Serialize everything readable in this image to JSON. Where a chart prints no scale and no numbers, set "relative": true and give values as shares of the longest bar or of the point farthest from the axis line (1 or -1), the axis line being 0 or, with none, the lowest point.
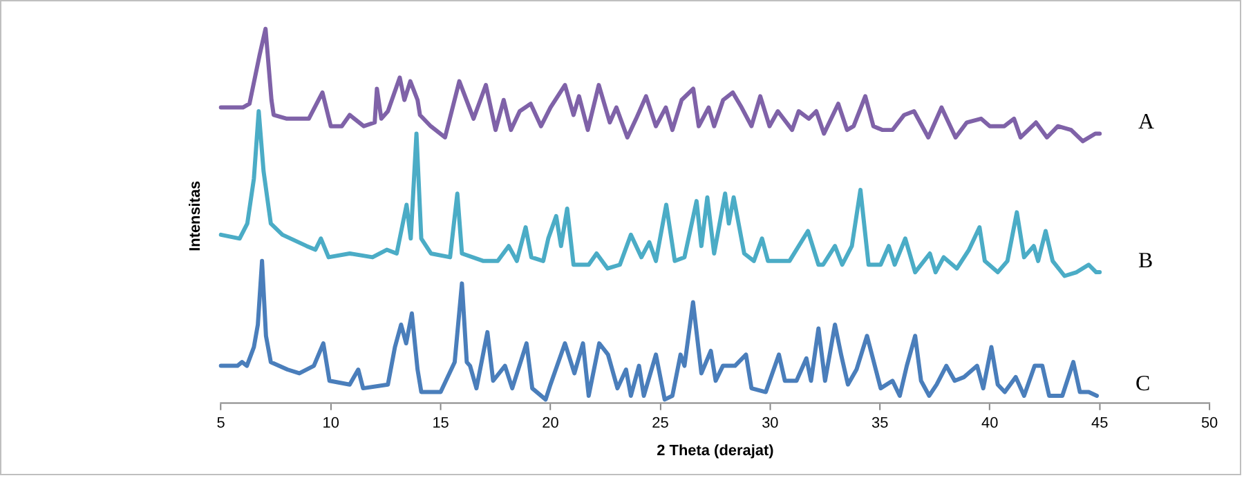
{
  "chart_data": {
    "type": "line",
    "relative": true,
    "xlabel": "2 Theta (derajat)",
    "ylabel": "Intensitas",
    "xlim": [
      5,
      50
    ],
    "xticks": [
      5,
      10,
      15,
      20,
      25,
      30,
      35,
      40,
      45,
      50
    ],
    "grid": false,
    "legend": false,
    "marker": "none",
    "line_style": "solid",
    "series": [
      {
        "name": "A",
        "color": "#7f62a8",
        "x": [
          5,
          6,
          6.3,
          6.76,
          7.03,
          7.3,
          7.4,
          8,
          9,
          9.62,
          10,
          10.5,
          10.86,
          11.5,
          12,
          12.1,
          12.3,
          12.6,
          13.14,
          13.35,
          13.62,
          13.95,
          14.06,
          14.55,
          15.2,
          15.85,
          16.5,
          17.06,
          17.5,
          17.87,
          18.2,
          18.6,
          19.1,
          19.57,
          20,
          20.66,
          21.05,
          21.3,
          21.7,
          22.2,
          22.7,
          23,
          23.5,
          23.9,
          24.35,
          24.8,
          25.25,
          25.55,
          25.97,
          26.5,
          26.75,
          27.2,
          27.45,
          27.86,
          28.3,
          28.7,
          29.15,
          29.55,
          29.97,
          30.35,
          31,
          31.3,
          31.76,
          32.1,
          32.45,
          33.1,
          33.5,
          33.8,
          34.33,
          34.7,
          35.1,
          35.57,
          36.1,
          36.55,
          37.2,
          37.8,
          38.44,
          38.95,
          39.6,
          40,
          40.66,
          41.1,
          41.4,
          42.1,
          42.6,
          43.1,
          43.7,
          44.23,
          44.8,
          45
        ],
        "values": [
          0.79,
          0.79,
          0.8,
          0.93,
          1,
          0.81,
          0.77,
          0.76,
          0.76,
          0.83,
          0.74,
          0.74,
          0.77,
          0.74,
          0.75,
          0.84,
          0.76,
          0.78,
          0.87,
          0.81,
          0.86,
          0.81,
          0.77,
          0.74,
          0.71,
          0.86,
          0.76,
          0.85,
          0.73,
          0.81,
          0.73,
          0.78,
          0.8,
          0.74,
          0.79,
          0.85,
          0.77,
          0.82,
          0.73,
          0.85,
          0.75,
          0.79,
          0.71,
          0.76,
          0.82,
          0.74,
          0.79,
          0.73,
          0.81,
          0.84,
          0.74,
          0.79,
          0.74,
          0.81,
          0.83,
          0.79,
          0.74,
          0.82,
          0.74,
          0.78,
          0.73,
          0.78,
          0.76,
          0.78,
          0.72,
          0.8,
          0.73,
          0.74,
          0.82,
          0.74,
          0.73,
          0.73,
          0.77,
          0.78,
          0.71,
          0.79,
          0.71,
          0.75,
          0.76,
          0.74,
          0.74,
          0.76,
          0.71,
          0.75,
          0.71,
          0.74,
          0.73,
          0.7,
          0.72,
          0.72
        ]
      },
      {
        "name": "B",
        "color": "#4bacc6",
        "x": [
          5,
          5.85,
          6.2,
          6.5,
          6.72,
          6.94,
          7.27,
          7.8,
          8.9,
          9.3,
          9.55,
          9.9,
          10.86,
          11.9,
          12.55,
          13,
          13.45,
          13.64,
          13.9,
          14.12,
          14.56,
          15.43,
          15.76,
          15.97,
          16.95,
          17.6,
          18.1,
          18.47,
          18.87,
          19.13,
          19.67,
          19.9,
          20.26,
          20.48,
          20.76,
          21.05,
          21.74,
          22.1,
          22.6,
          23.16,
          23.66,
          24.14,
          24.5,
          24.8,
          25.27,
          25.66,
          26.1,
          26.65,
          26.87,
          27.14,
          27.45,
          27.95,
          28.12,
          28.34,
          28.82,
          29.26,
          29.63,
          29.9,
          30.88,
          31.72,
          32.2,
          32.41,
          32.95,
          33.28,
          33.72,
          34.11,
          34.48,
          35.03,
          35.4,
          35.67,
          36.15,
          36.6,
          37.27,
          37.53,
          37.9,
          38.5,
          39.05,
          39.53,
          39.77,
          40.36,
          40.8,
          41.23,
          41.56,
          42,
          42.2,
          42.54,
          42.86,
          43.4,
          43.95,
          44.5,
          44.84,
          45
        ],
        "values": [
          0.45,
          0.44,
          0.48,
          0.6,
          0.78,
          0.62,
          0.48,
          0.45,
          0.42,
          0.41,
          0.44,
          0.39,
          0.4,
          0.39,
          0.41,
          0.4,
          0.53,
          0.44,
          0.72,
          0.44,
          0.4,
          0.39,
          0.56,
          0.4,
          0.38,
          0.38,
          0.42,
          0.38,
          0.47,
          0.39,
          0.38,
          0.44,
          0.5,
          0.42,
          0.52,
          0.37,
          0.37,
          0.4,
          0.36,
          0.37,
          0.45,
          0.39,
          0.43,
          0.38,
          0.53,
          0.38,
          0.39,
          0.54,
          0.42,
          0.55,
          0.4,
          0.56,
          0.48,
          0.55,
          0.4,
          0.38,
          0.44,
          0.38,
          0.38,
          0.46,
          0.37,
          0.37,
          0.42,
          0.37,
          0.42,
          0.57,
          0.37,
          0.37,
          0.42,
          0.37,
          0.44,
          0.35,
          0.4,
          0.35,
          0.39,
          0.36,
          0.41,
          0.47,
          0.38,
          0.35,
          0.38,
          0.51,
          0.39,
          0.42,
          0.38,
          0.46,
          0.38,
          0.34,
          0.35,
          0.37,
          0.35,
          0.35
        ]
      },
      {
        "name": "C",
        "color": "#4a7ebb",
        "x": [
          5,
          5.75,
          5.96,
          6.18,
          6.5,
          6.68,
          6.87,
          7.05,
          7.27,
          8.03,
          8.57,
          9.23,
          9.66,
          9.94,
          10.86,
          11.25,
          11.47,
          12.6,
          12.92,
          13.2,
          13.43,
          13.69,
          13.95,
          14.12,
          15,
          15.64,
          15.97,
          16.19,
          16.34,
          16.63,
          17.13,
          17.39,
          17.93,
          18.26,
          18.91,
          19.17,
          19.78,
          20,
          20.66,
          21.09,
          21.48,
          21.74,
          22.22,
          22.62,
          23.05,
          23.44,
          23.66,
          24.03,
          24.25,
          24.8,
          25.2,
          25.55,
          25.92,
          26.1,
          26.49,
          26.87,
          27.3,
          27.52,
          27.85,
          28.4,
          28.9,
          29.15,
          29.8,
          30.4,
          30.67,
          31.2,
          31.65,
          31.86,
          32.2,
          32.5,
          32.95,
          33.23,
          33.54,
          33.93,
          34.41,
          35.03,
          35.57,
          35.9,
          36.22,
          36.6,
          36.87,
          37.24,
          37.58,
          38.02,
          38.4,
          38.83,
          39.42,
          39.7,
          40.07,
          40.36,
          40.68,
          41.18,
          41.56,
          42.04,
          42.39,
          42.7,
          43.3,
          43.8,
          44.1,
          44.5,
          44.87
        ],
        "values": [
          0.1,
          0.1,
          0.11,
          0.1,
          0.15,
          0.21,
          0.38,
          0.18,
          0.11,
          0.09,
          0.08,
          0.1,
          0.16,
          0.06,
          0.05,
          0.09,
          0.04,
          0.05,
          0.15,
          0.21,
          0.16,
          0.24,
          0.09,
          0.03,
          0.03,
          0.11,
          0.32,
          0.11,
          0.1,
          0.04,
          0.19,
          0.06,
          0.1,
          0.04,
          0.16,
          0.04,
          0.01,
          0.05,
          0.16,
          0.08,
          0.16,
          0.02,
          0.16,
          0.13,
          0.04,
          0.09,
          0.02,
          0.1,
          0.02,
          0.13,
          0.01,
          0.02,
          0.13,
          0.1,
          0.27,
          0.08,
          0.14,
          0.06,
          0.1,
          0.1,
          0.13,
          0.04,
          0.03,
          0.13,
          0.06,
          0.06,
          0.12,
          0.06,
          0.2,
          0.06,
          0.21,
          0.13,
          0.05,
          0.09,
          0.18,
          0.04,
          0.06,
          0.02,
          0.1,
          0.18,
          0.06,
          0.02,
          0.05,
          0.1,
          0.06,
          0.07,
          0.1,
          0.04,
          0.15,
          0.05,
          0.03,
          0.07,
          0.02,
          0.1,
          0.1,
          0.02,
          0.02,
          0.11,
          0.03,
          0.03,
          0.02
        ]
      }
    ]
  }
}
